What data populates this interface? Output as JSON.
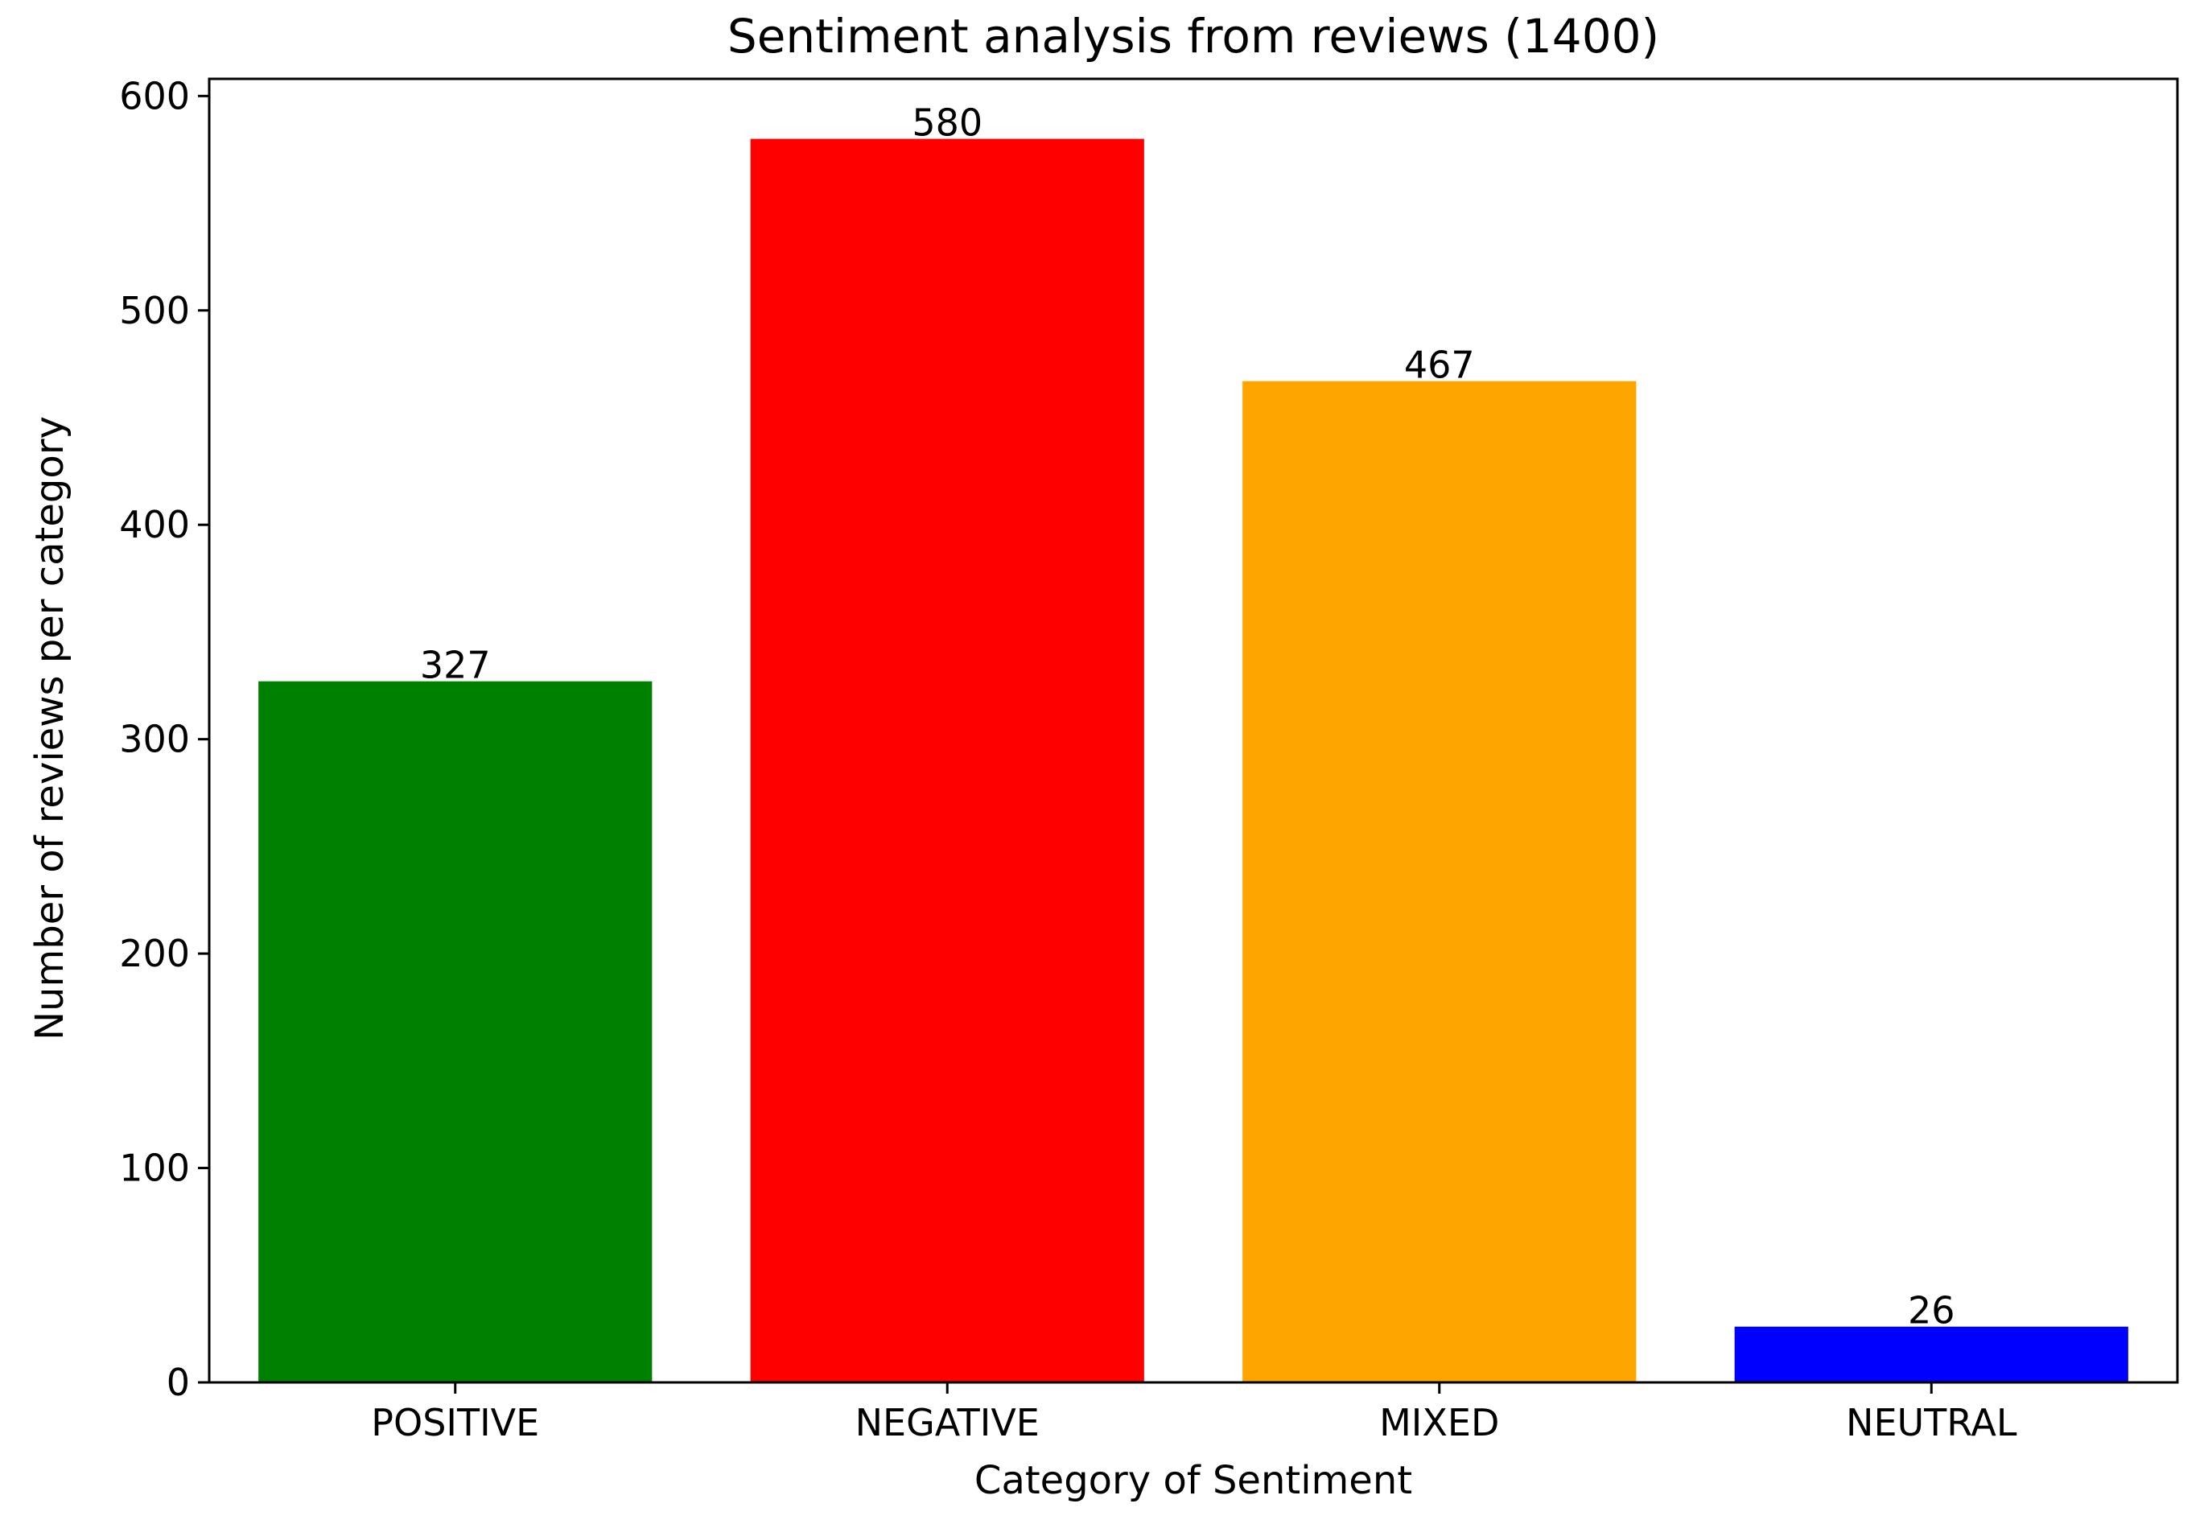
{
  "chart_data": {
    "type": "bar",
    "title": "Sentiment analysis from reviews (1400)",
    "xlabel": "Category of Sentiment",
    "ylabel": "Number of reviews per category",
    "categories": [
      "POSITIVE",
      "NEGATIVE",
      "MIXED",
      "NEUTRAL"
    ],
    "values": [
      327,
      580,
      467,
      26
    ],
    "value_labels": [
      "327",
      "580",
      "467",
      "26"
    ],
    "colors": [
      "#008000",
      "#ff0000",
      "#ffa500",
      "#0000ff"
    ],
    "ylim": [
      0,
      608
    ],
    "yticks": [
      0,
      100,
      200,
      300,
      400,
      500,
      600
    ],
    "ytick_labels": [
      "0",
      "100",
      "200",
      "300",
      "400",
      "500",
      "600"
    ],
    "grid": false,
    "legend": "none"
  }
}
